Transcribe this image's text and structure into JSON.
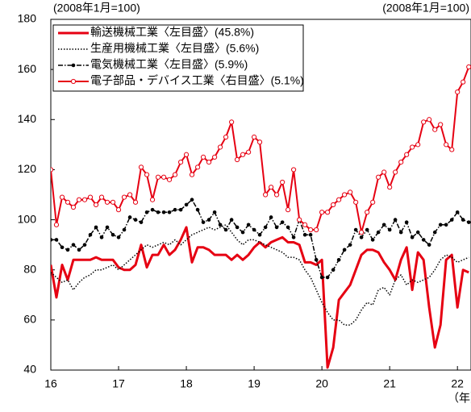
{
  "chart_data": {
    "type": "line",
    "left_axis_label": "(2008年1月=100)",
    "right_axis_label": "(2008年1月=100)",
    "x_axis_label": "（年）",
    "x": [
      16,
      16.083,
      16.167,
      16.25,
      16.333,
      16.417,
      16.5,
      16.583,
      16.667,
      16.75,
      16.833,
      16.917,
      17,
      17.083,
      17.167,
      17.25,
      17.333,
      17.417,
      17.5,
      17.583,
      17.667,
      17.75,
      17.833,
      17.917,
      18,
      18.083,
      18.167,
      18.25,
      18.333,
      18.417,
      18.5,
      18.583,
      18.667,
      18.75,
      18.833,
      18.917,
      19,
      19.083,
      19.167,
      19.25,
      19.333,
      19.417,
      19.5,
      19.583,
      19.667,
      19.75,
      19.833,
      19.917,
      20,
      20.083,
      20.167,
      20.25,
      20.333,
      20.417,
      20.5,
      20.583,
      20.667,
      20.75,
      20.833,
      20.917,
      21,
      21.083,
      21.167,
      21.25,
      21.333,
      21.417,
      21.5,
      21.583,
      21.667,
      21.75,
      21.833,
      21.917,
      22,
      22.083,
      22.167
    ],
    "xlim": [
      16,
      22.2
    ],
    "xticks": [
      16,
      17,
      18,
      19,
      20,
      21,
      22
    ],
    "ylim": [
      40,
      180
    ],
    "yticks": [
      40,
      60,
      80,
      100,
      120,
      140,
      160,
      180
    ],
    "y2lim": [
      40,
      180
    ],
    "grid": false,
    "legend": "upper left",
    "series": [
      {
        "name": "輸送機械工業〈左目盛〉(45.8%)",
        "color": "#e60012",
        "linestyle": "solid",
        "linewidth": 3,
        "marker": "none",
        "values": [
          82,
          69,
          82,
          76,
          84,
          84,
          84,
          84,
          85,
          84,
          84,
          84,
          81,
          80,
          80,
          82,
          90,
          81,
          86,
          86,
          90,
          86,
          88,
          92,
          97,
          83,
          89,
          89,
          88,
          86,
          86,
          86,
          84,
          86,
          84,
          86,
          89,
          91,
          89,
          91,
          92,
          93,
          91,
          91,
          90,
          83,
          83,
          82,
          84,
          41,
          49,
          68,
          71,
          74,
          80,
          86,
          88,
          88,
          87,
          83,
          80,
          76,
          84,
          89,
          72,
          87,
          84,
          65,
          49,
          58,
          84,
          86,
          65,
          80,
          79
        ]
      },
      {
        "name": "生産用機械工業〈左目盛〉(5.6%)",
        "color": "#000000",
        "linestyle": "dotted",
        "linewidth": 1.5,
        "marker": "none",
        "values": [
          79,
          77,
          75,
          76,
          72,
          75,
          77,
          78,
          80,
          80,
          81,
          82,
          80,
          82,
          84,
          86,
          88,
          90,
          89,
          90,
          91,
          90,
          92,
          90,
          92,
          94,
          95,
          96,
          97,
          96,
          97,
          98,
          95,
          92,
          90,
          92,
          92,
          91,
          90,
          89,
          88,
          87,
          85,
          85,
          84,
          80,
          77,
          72,
          67,
          63,
          60,
          60,
          58,
          58,
          60,
          64,
          67,
          66,
          72,
          73,
          70,
          76,
          78,
          74,
          76,
          75,
          76,
          77,
          80,
          84,
          86,
          85,
          83,
          84,
          85
        ]
      },
      {
        "name": "電気機械工業〈左目盛〉(5.9%)",
        "color": "#000000",
        "linestyle": "dashdot",
        "linewidth": 1.5,
        "marker": "dot",
        "values": [
          92,
          92,
          89,
          88,
          90,
          88,
          90,
          94,
          97,
          93,
          97,
          94,
          93,
          96,
          101,
          100,
          99,
          103,
          104,
          103,
          103,
          103,
          104,
          104,
          106,
          108,
          104,
          99,
          100,
          103,
          98,
          96,
          100,
          97,
          95,
          98,
          96,
          94,
          97,
          101,
          97,
          99,
          97,
          93,
          100,
          94,
          94,
          84,
          77,
          77,
          80,
          84,
          88,
          90,
          96,
          93,
          96,
          92,
          95,
          98,
          96,
          100,
          95,
          99,
          93,
          95,
          92,
          90,
          95,
          98,
          98,
          100,
          103,
          100,
          99
        ]
      },
      {
        "name": "電子部品・デバイス工業〈右目盛〉(5.1%)",
        "color": "#e60012",
        "linestyle": "solid",
        "linewidth": 2,
        "marker": "circle",
        "axis": "y2",
        "values": [
          120,
          98,
          109,
          107,
          105,
          108,
          108,
          109,
          106,
          109,
          107,
          107,
          104,
          109,
          110,
          107,
          121,
          118,
          108,
          117,
          117,
          116,
          118,
          123,
          126,
          118,
          121,
          125,
          123,
          125,
          129,
          133,
          139,
          124,
          126,
          127,
          133,
          131,
          110,
          113,
          110,
          115,
          104,
          120,
          100,
          98,
          96,
          96,
          103,
          103,
          106,
          108,
          110,
          111,
          107,
          95,
          103,
          107,
          117,
          119,
          113,
          119,
          123,
          126,
          129,
          130,
          139,
          140,
          136,
          138,
          130,
          128,
          151,
          155,
          161
        ]
      }
    ]
  }
}
